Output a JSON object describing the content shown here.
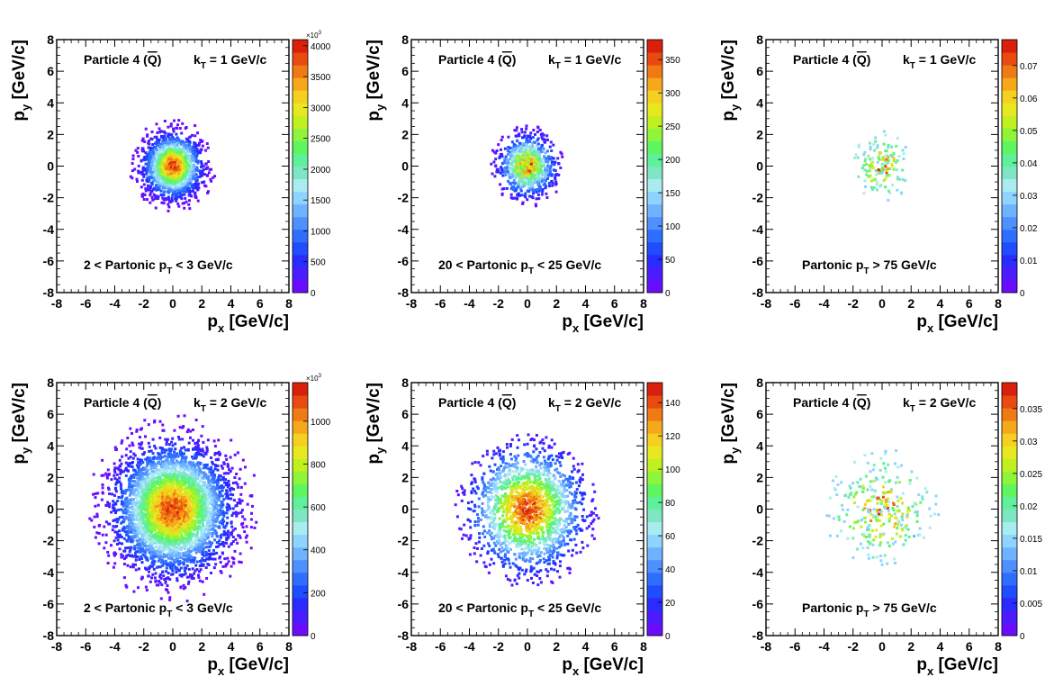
{
  "chart_data": [
    {
      "type": "heatmap",
      "particle_label": "Particle 4 (",
      "particle_symbol": "Q",
      "particle_close": ")",
      "kt_label": "k",
      "kt_sub": "T",
      "kt_value": " = 1 GeV/c",
      "cut_pre": "2 < Partonic p",
      "cut_sub": "T",
      "cut_post": " < 3 GeV/c",
      "xlabel_main": "p",
      "xlabel_sub": "x",
      "xlabel_unit": " [GeV/c]",
      "ylabel_main": "p",
      "ylabel_sub": "y",
      "ylabel_unit": " [GeV/c]",
      "xlim": [
        -8,
        8
      ],
      "ylim": [
        -8,
        8
      ],
      "xticks": [
        "-8",
        "-6",
        "-4",
        "-2",
        "0",
        "2",
        "4",
        "6",
        "8"
      ],
      "yticks": [
        "-8",
        "-6",
        "-4",
        "-2",
        "0",
        "2",
        "4",
        "6",
        "8"
      ],
      "distribution": {
        "center": [
          0,
          0
        ],
        "sigma": 1.0,
        "extent_radius": 3.0,
        "n_points": 1800,
        "peak_value": 4000
      },
      "colorbar": {
        "max": 4100,
        "ticks": [
          "0",
          "500",
          "1000",
          "1500",
          "2000",
          "2500",
          "3000",
          "3500",
          "4000"
        ],
        "tick_values": [
          0,
          500,
          1000,
          1500,
          2000,
          2500,
          3000,
          3500,
          4000
        ],
        "exponent": "×10",
        "exponent_power": "3"
      }
    },
    {
      "type": "heatmap",
      "particle_label": "Particle 4 (",
      "particle_symbol": "Q",
      "particle_close": ")",
      "kt_label": "k",
      "kt_sub": "T",
      "kt_value": " = 1 GeV/c",
      "cut_pre": "20 < Partonic p",
      "cut_sub": "T",
      "cut_post": " < 25 GeV/c",
      "xlabel_main": "p",
      "xlabel_sub": "x",
      "xlabel_unit": " [GeV/c]",
      "ylabel_main": "p",
      "ylabel_sub": "y",
      "ylabel_unit": " [GeV/c]",
      "xlim": [
        -8,
        8
      ],
      "ylim": [
        -8,
        8
      ],
      "xticks": [
        "-8",
        "-6",
        "-4",
        "-2",
        "0",
        "2",
        "4",
        "6",
        "8"
      ],
      "yticks": [
        "-8",
        "-6",
        "-4",
        "-2",
        "0",
        "2",
        "4",
        "6",
        "8"
      ],
      "distribution": {
        "center": [
          0,
          0
        ],
        "sigma": 1.0,
        "extent_radius": 2.6,
        "n_points": 900,
        "peak_value": 360
      },
      "colorbar": {
        "max": 380,
        "ticks": [
          "0",
          "50",
          "100",
          "150",
          "200",
          "250",
          "300",
          "350"
        ],
        "tick_values": [
          0,
          50,
          100,
          150,
          200,
          250,
          300,
          350
        ],
        "exponent": "",
        "exponent_power": ""
      }
    },
    {
      "type": "heatmap",
      "particle_label": "Particle 4 (",
      "particle_symbol": "Q",
      "particle_close": ")",
      "kt_label": "k",
      "kt_sub": "T",
      "kt_value": " = 1 GeV/c",
      "cut_pre": "Partonic p",
      "cut_sub": "T",
      "cut_post": " > 75 GeV/c",
      "xlabel_main": "p",
      "xlabel_sub": "x",
      "xlabel_unit": " [GeV/c]",
      "ylabel_main": "p",
      "ylabel_sub": "y",
      "ylabel_unit": " [GeV/c]",
      "xlim": [
        -8,
        8
      ],
      "ylim": [
        -8,
        8
      ],
      "xticks": [
        "-8",
        "-6",
        "-4",
        "-2",
        "0",
        "2",
        "4",
        "6",
        "8"
      ],
      "yticks": [
        "-8",
        "-6",
        "-4",
        "-2",
        "0",
        "2",
        "4",
        "6",
        "8"
      ],
      "distribution": {
        "center": [
          0,
          0
        ],
        "sigma": 1.0,
        "extent_radius": 2.2,
        "n_points": 160,
        "peak_value": 0.075
      },
      "colorbar": {
        "max": 0.078,
        "ticks": [
          "0",
          "0.01",
          "0.02",
          "0.03",
          "0.04",
          "0.05",
          "0.06",
          "0.07"
        ],
        "tick_values": [
          0,
          0.01,
          0.02,
          0.03,
          0.04,
          0.05,
          0.06,
          0.07
        ],
        "exponent": "",
        "exponent_power": ""
      }
    },
    {
      "type": "heatmap",
      "particle_label": "Particle 4 (",
      "particle_symbol": "Q",
      "particle_close": ")",
      "kt_label": "k",
      "kt_sub": "T",
      "kt_value": " = 2 GeV/c",
      "cut_pre": "2 < Partonic p",
      "cut_sub": "T",
      "cut_post": " < 3 GeV/c",
      "xlabel_main": "p",
      "xlabel_sub": "x",
      "xlabel_unit": " [GeV/c]",
      "ylabel_main": "p",
      "ylabel_sub": "y",
      "ylabel_unit": " [GeV/c]",
      "xlim": [
        -8,
        8
      ],
      "ylim": [
        -8,
        8
      ],
      "xticks": [
        "-8",
        "-6",
        "-4",
        "-2",
        "0",
        "2",
        "4",
        "6",
        "8"
      ],
      "yticks": [
        "-8",
        "-6",
        "-4",
        "-2",
        "0",
        "2",
        "4",
        "6",
        "8"
      ],
      "distribution": {
        "center": [
          0,
          0
        ],
        "sigma": 2.0,
        "extent_radius": 6.0,
        "n_points": 4200,
        "peak_value": 1150
      },
      "colorbar": {
        "max": 1180,
        "ticks": [
          "0",
          "200",
          "400",
          "600",
          "800",
          "1000"
        ],
        "tick_values": [
          0,
          200,
          400,
          600,
          800,
          1000
        ],
        "exponent": "×10",
        "exponent_power": "3"
      }
    },
    {
      "type": "heatmap",
      "particle_label": "Particle 4 (",
      "particle_symbol": "Q",
      "particle_close": ")",
      "kt_label": "k",
      "kt_sub": "T",
      "kt_value": " = 2 GeV/c",
      "cut_pre": "20 < Partonic p",
      "cut_sub": "T",
      "cut_post": " < 25 GeV/c",
      "xlabel_main": "p",
      "xlabel_sub": "x",
      "xlabel_unit": " [GeV/c]",
      "ylabel_main": "p",
      "ylabel_sub": "y",
      "ylabel_unit": " [GeV/c]",
      "xlim": [
        -8,
        8
      ],
      "ylim": [
        -8,
        8
      ],
      "xticks": [
        "-8",
        "-6",
        "-4",
        "-2",
        "0",
        "2",
        "4",
        "6",
        "8"
      ],
      "yticks": [
        "-8",
        "-6",
        "-4",
        "-2",
        "0",
        "2",
        "4",
        "6",
        "8"
      ],
      "distribution": {
        "center": [
          0,
          0
        ],
        "sigma": 2.0,
        "extent_radius": 5.0,
        "n_points": 1800,
        "peak_value": 145
      },
      "colorbar": {
        "max": 152,
        "ticks": [
          "0",
          "20",
          "40",
          "60",
          "80",
          "100",
          "120",
          "140"
        ],
        "tick_values": [
          0,
          20,
          40,
          60,
          80,
          100,
          120,
          140
        ],
        "exponent": "",
        "exponent_power": ""
      }
    },
    {
      "type": "heatmap",
      "particle_label": "Particle 4 (",
      "particle_symbol": "Q",
      "particle_close": ")",
      "kt_label": "k",
      "kt_sub": "T",
      "kt_value": " = 2 GeV/c",
      "cut_pre": "Partonic p",
      "cut_sub": "T",
      "cut_post": " > 75 GeV/c",
      "xlabel_main": "p",
      "xlabel_sub": "x",
      "xlabel_unit": " [GeV/c]",
      "ylabel_main": "p",
      "ylabel_sub": "y",
      "ylabel_unit": " [GeV/c]",
      "xlim": [
        -8,
        8
      ],
      "ylim": [
        -8,
        8
      ],
      "xticks": [
        "-8",
        "-6",
        "-4",
        "-2",
        "0",
        "2",
        "4",
        "6",
        "8"
      ],
      "yticks": [
        "-8",
        "-6",
        "-4",
        "-2",
        "0",
        "2",
        "4",
        "6",
        "8"
      ],
      "distribution": {
        "center": [
          0,
          0
        ],
        "sigma": 1.8,
        "extent_radius": 4.0,
        "n_points": 320,
        "peak_value": 0.038
      },
      "colorbar": {
        "max": 0.039,
        "ticks": [
          "0",
          "0.005",
          "0.01",
          "0.015",
          "0.02",
          "0.025",
          "0.03",
          "0.035"
        ],
        "tick_values": [
          0,
          0.005,
          0.01,
          0.015,
          0.02,
          0.025,
          0.03,
          0.035
        ],
        "exponent": "",
        "exponent_power": ""
      }
    }
  ],
  "palette": [
    "#6a0dff",
    "#4a1cff",
    "#2a2cff",
    "#1f4dff",
    "#2f6fff",
    "#4f90ff",
    "#6fb2ff",
    "#8fd4ff",
    "#a8ecf0",
    "#7ee6c2",
    "#5ef09a",
    "#5ff55f",
    "#8ff53a",
    "#c0f020",
    "#e8e820",
    "#f5d020",
    "#f5a81a",
    "#f07a14",
    "#e84a10",
    "#d8200c"
  ]
}
